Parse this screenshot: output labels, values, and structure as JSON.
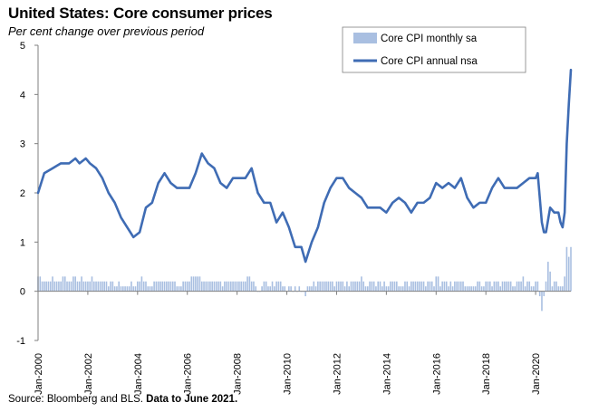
{
  "header": {
    "title": "United States: Core consumer prices",
    "subtitle": "Per cent change over previous period"
  },
  "footer": {
    "source_prefix": "Source: Bloomberg and BLS. ",
    "source_bold": "Data to June 2021."
  },
  "colors": {
    "monthly": "#a9bfe1",
    "annual": "#3f6cb4",
    "axis": "#7f7f7f"
  },
  "chart_data": {
    "type": "bar+line",
    "x_ticks": [
      "Jan-2000",
      "Jan-2002",
      "Jan-2004",
      "Jan-2006",
      "Jan-2008",
      "Jan-2010",
      "Jan-2012",
      "Jan-2014",
      "Jan-2016",
      "Jan-2018",
      "Jan-2020"
    ],
    "y_ticks": [
      "-1",
      "0",
      "1",
      "2",
      "3",
      "4",
      "5"
    ],
    "ylim": [
      -1,
      5
    ],
    "x_start": "2000-01",
    "x_end": "2021-06",
    "legend": {
      "position": "top-right",
      "entries": [
        "Core CPI monthly sa",
        "Core CPI annual nsa"
      ]
    },
    "series": [
      {
        "name": "Core CPI annual nsa",
        "kind": "line",
        "points": [
          [
            "2000-01",
            2.0
          ],
          [
            "2000-04",
            2.4
          ],
          [
            "2000-08",
            2.5
          ],
          [
            "2000-12",
            2.6
          ],
          [
            "2001-04",
            2.6
          ],
          [
            "2001-07",
            2.7
          ],
          [
            "2001-09",
            2.6
          ],
          [
            "2001-12",
            2.7
          ],
          [
            "2002-02",
            2.6
          ],
          [
            "2002-05",
            2.5
          ],
          [
            "2002-08",
            2.3
          ],
          [
            "2002-11",
            2.0
          ],
          [
            "2003-02",
            1.8
          ],
          [
            "2003-05",
            1.5
          ],
          [
            "2003-08",
            1.3
          ],
          [
            "2003-11",
            1.1
          ],
          [
            "2004-02",
            1.2
          ],
          [
            "2004-05",
            1.7
          ],
          [
            "2004-08",
            1.8
          ],
          [
            "2004-11",
            2.2
          ],
          [
            "2005-02",
            2.4
          ],
          [
            "2005-05",
            2.2
          ],
          [
            "2005-08",
            2.1
          ],
          [
            "2005-11",
            2.1
          ],
          [
            "2006-02",
            2.1
          ],
          [
            "2006-05",
            2.4
          ],
          [
            "2006-08",
            2.8
          ],
          [
            "2006-11",
            2.6
          ],
          [
            "2007-02",
            2.5
          ],
          [
            "2007-05",
            2.2
          ],
          [
            "2007-08",
            2.1
          ],
          [
            "2007-11",
            2.3
          ],
          [
            "2008-02",
            2.3
          ],
          [
            "2008-05",
            2.3
          ],
          [
            "2008-08",
            2.5
          ],
          [
            "2008-11",
            2.0
          ],
          [
            "2009-02",
            1.8
          ],
          [
            "2009-05",
            1.8
          ],
          [
            "2009-08",
            1.4
          ],
          [
            "2009-11",
            1.6
          ],
          [
            "2010-02",
            1.3
          ],
          [
            "2010-05",
            0.9
          ],
          [
            "2010-08",
            0.9
          ],
          [
            "2010-10",
            0.6
          ],
          [
            "2011-01",
            1.0
          ],
          [
            "2011-04",
            1.3
          ],
          [
            "2011-07",
            1.8
          ],
          [
            "2011-10",
            2.1
          ],
          [
            "2012-01",
            2.3
          ],
          [
            "2012-04",
            2.3
          ],
          [
            "2012-07",
            2.1
          ],
          [
            "2012-10",
            2.0
          ],
          [
            "2013-01",
            1.9
          ],
          [
            "2013-04",
            1.7
          ],
          [
            "2013-07",
            1.7
          ],
          [
            "2013-10",
            1.7
          ],
          [
            "2014-01",
            1.6
          ],
          [
            "2014-04",
            1.8
          ],
          [
            "2014-07",
            1.9
          ],
          [
            "2014-10",
            1.8
          ],
          [
            "2015-01",
            1.6
          ],
          [
            "2015-04",
            1.8
          ],
          [
            "2015-07",
            1.8
          ],
          [
            "2015-10",
            1.9
          ],
          [
            "2016-01",
            2.2
          ],
          [
            "2016-04",
            2.1
          ],
          [
            "2016-07",
            2.2
          ],
          [
            "2016-10",
            2.1
          ],
          [
            "2017-01",
            2.3
          ],
          [
            "2017-04",
            1.9
          ],
          [
            "2017-07",
            1.7
          ],
          [
            "2017-10",
            1.8
          ],
          [
            "2018-01",
            1.8
          ],
          [
            "2018-04",
            2.1
          ],
          [
            "2018-07",
            2.3
          ],
          [
            "2018-10",
            2.1
          ],
          [
            "2019-01",
            2.1
          ],
          [
            "2019-04",
            2.1
          ],
          [
            "2019-07",
            2.2
          ],
          [
            "2019-10",
            2.3
          ],
          [
            "2020-01",
            2.3
          ],
          [
            "2020-02",
            2.4
          ],
          [
            "2020-04",
            1.4
          ],
          [
            "2020-05",
            1.2
          ],
          [
            "2020-06",
            1.2
          ],
          [
            "2020-08",
            1.7
          ],
          [
            "2020-10",
            1.6
          ],
          [
            "2020-12",
            1.6
          ],
          [
            "2021-01",
            1.4
          ],
          [
            "2021-02",
            1.3
          ],
          [
            "2021-03",
            1.6
          ],
          [
            "2021-04",
            3.0
          ],
          [
            "2021-05",
            3.8
          ],
          [
            "2021-06",
            4.5
          ]
        ]
      },
      {
        "name": "Core CPI monthly sa",
        "kind": "bar",
        "start": "2000-01",
        "values": [
          0.3,
          0.3,
          0.2,
          0.2,
          0.2,
          0.2,
          0.2,
          0.3,
          0.2,
          0.2,
          0.2,
          0.2,
          0.3,
          0.3,
          0.2,
          0.2,
          0.2,
          0.3,
          0.3,
          0.2,
          0.2,
          0.3,
          0.2,
          0.2,
          0.2,
          0.2,
          0.3,
          0.2,
          0.2,
          0.2,
          0.2,
          0.2,
          0.2,
          0.2,
          0.1,
          0.2,
          0.2,
          0.1,
          0.1,
          0.2,
          0.1,
          0.1,
          0.1,
          0.1,
          0.1,
          0.2,
          0.1,
          0.1,
          0.2,
          0.2,
          0.3,
          0.2,
          0.2,
          0.1,
          0.1,
          0.1,
          0.2,
          0.2,
          0.2,
          0.2,
          0.2,
          0.2,
          0.2,
          0.2,
          0.2,
          0.2,
          0.2,
          0.1,
          0.1,
          0.1,
          0.2,
          0.2,
          0.2,
          0.2,
          0.3,
          0.3,
          0.3,
          0.3,
          0.3,
          0.2,
          0.2,
          0.2,
          0.2,
          0.2,
          0.2,
          0.2,
          0.2,
          0.2,
          0.2,
          0.1,
          0.2,
          0.2,
          0.2,
          0.2,
          0.2,
          0.2,
          0.2,
          0.2,
          0.2,
          0.2,
          0.2,
          0.3,
          0.3,
          0.2,
          0.2,
          0.1,
          0.0,
          0.0,
          0.1,
          0.2,
          0.2,
          0.1,
          0.1,
          0.2,
          0.1,
          0.2,
          0.2,
          0.2,
          0.1,
          0.1,
          0.0,
          0.1,
          0.1,
          0.0,
          0.1,
          0.0,
          0.1,
          0.0,
          0.0,
          -0.1,
          0.1,
          0.1,
          0.1,
          0.2,
          0.1,
          0.2,
          0.2,
          0.2,
          0.2,
          0.2,
          0.2,
          0.2,
          0.2,
          0.1,
          0.2,
          0.2,
          0.2,
          0.2,
          0.1,
          0.2,
          0.1,
          0.2,
          0.2,
          0.2,
          0.2,
          0.2,
          0.3,
          0.2,
          0.1,
          0.1,
          0.2,
          0.2,
          0.2,
          0.1,
          0.2,
          0.2,
          0.1,
          0.2,
          0.1,
          0.1,
          0.2,
          0.2,
          0.2,
          0.2,
          0.1,
          0.1,
          0.1,
          0.2,
          0.2,
          0.1,
          0.2,
          0.2,
          0.2,
          0.2,
          0.2,
          0.2,
          0.2,
          0.1,
          0.2,
          0.2,
          0.2,
          0.1,
          0.3,
          0.3,
          0.1,
          0.2,
          0.2,
          0.2,
          0.1,
          0.2,
          0.1,
          0.2,
          0.2,
          0.2,
          0.2,
          0.2,
          0.1,
          0.1,
          0.1,
          0.1,
          0.1,
          0.1,
          0.2,
          0.2,
          0.1,
          0.1,
          0.2,
          0.2,
          0.2,
          0.1,
          0.2,
          0.2,
          0.2,
          0.1,
          0.2,
          0.2,
          0.2,
          0.2,
          0.2,
          0.1,
          0.1,
          0.2,
          0.2,
          0.2,
          0.3,
          0.1,
          0.2,
          0.2,
          0.1,
          0.1,
          0.2,
          0.2,
          -0.1,
          -0.4,
          -0.1,
          0.2,
          0.6,
          0.4,
          0.1,
          0.2,
          0.2,
          0.1,
          0.1,
          0.1,
          0.3,
          0.9,
          0.7,
          0.9
        ]
      }
    ]
  }
}
